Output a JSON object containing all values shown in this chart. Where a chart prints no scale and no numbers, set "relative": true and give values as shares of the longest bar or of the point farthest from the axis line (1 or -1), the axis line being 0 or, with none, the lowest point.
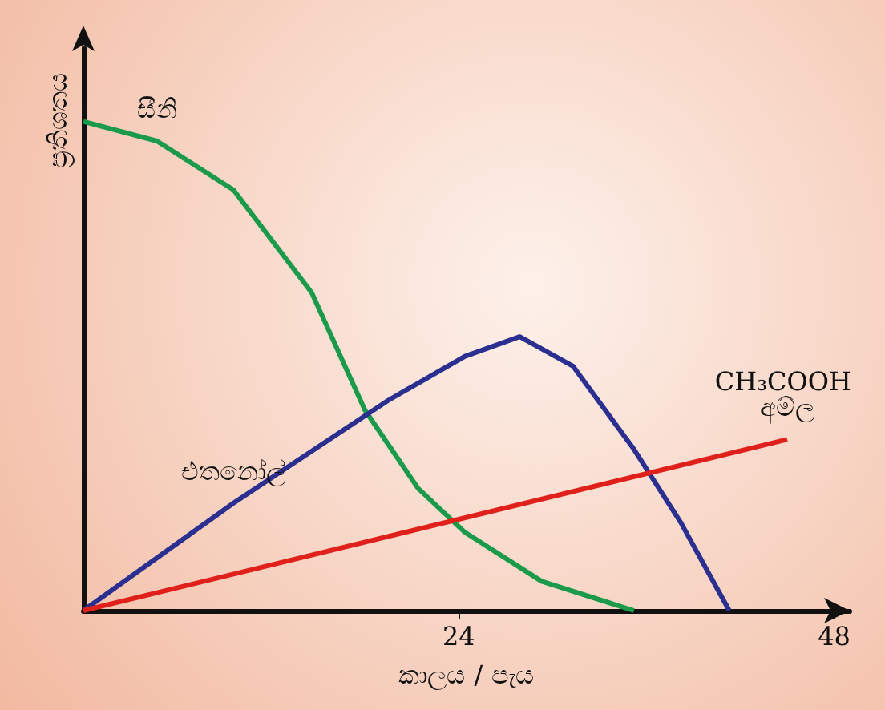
{
  "chart_data": {
    "type": "line",
    "relative": true,
    "xlabel": "කාලය / පැය",
    "ylabel": "ප්‍රතිශතය",
    "xlim": [
      0,
      49
    ],
    "xticks": [
      24,
      48
    ],
    "grid": false,
    "legend": false,
    "marker": "none",
    "line_style": "solid",
    "series": [
      {
        "name": "සීනි",
        "color": "#1a9a4a",
        "x": [
          0,
          4.7,
          9.6,
          14.6,
          18,
          21.4,
          24.4,
          29.3,
          35.2
        ],
        "values": [
          1,
          0.96,
          0.86,
          0.65,
          0.41,
          0.25,
          0.16,
          0.06,
          0
        ]
      },
      {
        "name": "එතනෝල්",
        "color": "#2b2f8f",
        "x": [
          0,
          9.6,
          19.5,
          24.4,
          27.9,
          31.3,
          35.2,
          38.2,
          41.3
        ],
        "values": [
          0,
          0.22,
          0.43,
          0.52,
          0.56,
          0.5,
          0.33,
          0.18,
          0
        ]
      },
      {
        "name": "CH₃COOH අම්ල",
        "color": "#e0201b",
        "x": [
          0,
          45
        ],
        "values": [
          0,
          0.35
        ]
      }
    ]
  }
}
